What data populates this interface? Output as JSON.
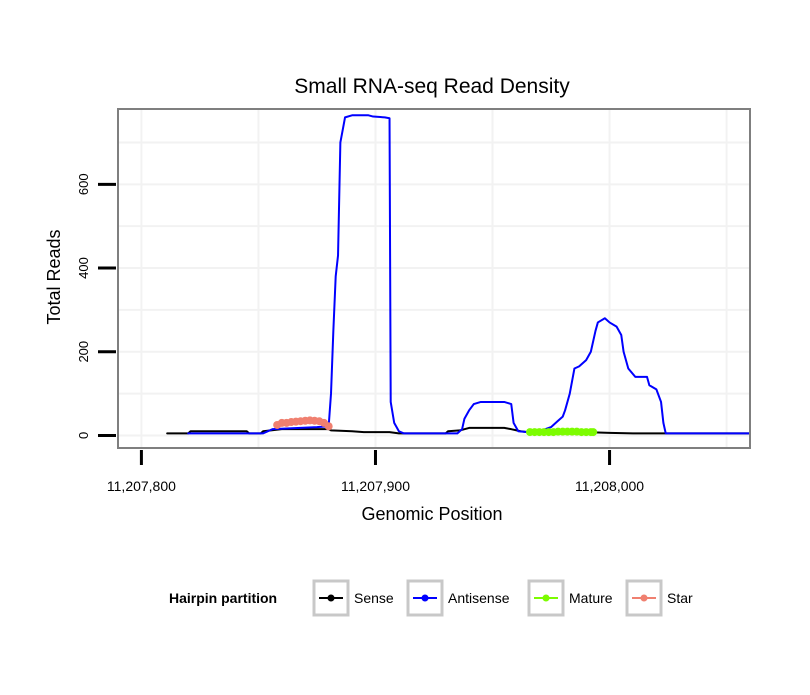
{
  "chart_data": {
    "type": "line",
    "title": "Small RNA-seq Read Density",
    "xlabel": "Genomic Position",
    "ylabel": "Total Reads",
    "xlim": [
      11207790,
      11208060
    ],
    "ylim": [
      -30,
      780
    ],
    "x_ticks": [
      11207800,
      11207900,
      11208000
    ],
    "x_tick_labels": [
      "11,207,800",
      "11,207,900",
      "11,208,000"
    ],
    "y_ticks": [
      0,
      200,
      400,
      600
    ],
    "y_tick_labels": [
      "0",
      "200",
      "400",
      "600"
    ],
    "grid": true,
    "legend": {
      "title": "Hairpin partition",
      "position": "bottom"
    },
    "colors": {
      "sense": "#000000",
      "antisense": "#0000ff",
      "mature": "#7cfc00",
      "star": "#f08070",
      "panel_border": "#7f7f7f",
      "grid": "#f2f2f2",
      "legend_key_border": "#c8c8c8"
    },
    "series": [
      {
        "name": "Sense",
        "color": "#000000",
        "marker": false,
        "points": [
          [
            11207811,
            5
          ],
          [
            11207820,
            5
          ],
          [
            11207821,
            10
          ],
          [
            11207835,
            10
          ],
          [
            11207845,
            10
          ],
          [
            11207846,
            5
          ],
          [
            11207851,
            5
          ],
          [
            11207852,
            10
          ],
          [
            11207860,
            15
          ],
          [
            11207870,
            15
          ],
          [
            11207880,
            15
          ],
          [
            11207881,
            12
          ],
          [
            11207890,
            10
          ],
          [
            11207895,
            8
          ],
          [
            11207900,
            8
          ],
          [
            11207906,
            8
          ],
          [
            11207910,
            5
          ],
          [
            11207930,
            5
          ],
          [
            11207931,
            10
          ],
          [
            11207936,
            12
          ],
          [
            11207940,
            18
          ],
          [
            11207955,
            18
          ],
          [
            11207958,
            15
          ],
          [
            11207962,
            10
          ],
          [
            11207965,
            8
          ],
          [
            11207990,
            8
          ],
          [
            11208000,
            6
          ],
          [
            11208010,
            5
          ],
          [
            11208060,
            5
          ]
        ]
      },
      {
        "name": "Antisense",
        "color": "#0000ff",
        "marker": false,
        "points": [
          [
            11207820,
            5
          ],
          [
            11207852,
            5
          ],
          [
            11207856,
            15
          ],
          [
            11207875,
            20
          ],
          [
            11207880,
            22
          ],
          [
            11207881,
            100
          ],
          [
            11207882,
            250
          ],
          [
            11207883,
            380
          ],
          [
            11207884,
            430
          ],
          [
            11207885,
            700
          ],
          [
            11207887,
            760
          ],
          [
            11207890,
            765
          ],
          [
            11207897,
            765
          ],
          [
            11207899,
            762
          ],
          [
            11207904,
            760
          ],
          [
            11207906,
            758
          ],
          [
            11207906.5,
            80
          ],
          [
            11207908,
            30
          ],
          [
            11207910,
            10
          ],
          [
            11207912,
            5
          ],
          [
            11207935,
            5
          ],
          [
            11207937,
            15
          ],
          [
            11207938,
            40
          ],
          [
            11207940,
            60
          ],
          [
            11207942,
            75
          ],
          [
            11207945,
            80
          ],
          [
            11207955,
            80
          ],
          [
            11207958,
            75
          ],
          [
            11207959,
            30
          ],
          [
            11207961,
            10
          ],
          [
            11207965,
            8
          ],
          [
            11207970,
            10
          ],
          [
            11207975,
            20
          ],
          [
            11207978,
            35
          ],
          [
            11207980,
            45
          ],
          [
            11207981,
            60
          ],
          [
            11207983,
            100
          ],
          [
            11207985,
            160
          ],
          [
            11207987,
            165
          ],
          [
            11207990,
            180
          ],
          [
            11207992,
            200
          ],
          [
            11207994,
            250
          ],
          [
            11207995,
            270
          ],
          [
            11207998,
            280
          ],
          [
            11208000,
            270
          ],
          [
            11208003,
            260
          ],
          [
            11208005,
            240
          ],
          [
            11208006,
            200
          ],
          [
            11208008,
            160
          ],
          [
            11208011,
            140
          ],
          [
            11208016,
            140
          ],
          [
            11208017,
            120
          ],
          [
            11208020,
            110
          ],
          [
            11208022,
            80
          ],
          [
            11208023,
            30
          ],
          [
            11208024,
            5
          ],
          [
            11208060,
            5
          ]
        ]
      },
      {
        "name": "Mature",
        "color": "#7cfc00",
        "marker": true,
        "points": [
          [
            11207966,
            8
          ],
          [
            11207968,
            8
          ],
          [
            11207970,
            8
          ],
          [
            11207972,
            8
          ],
          [
            11207974,
            8
          ],
          [
            11207976,
            8
          ],
          [
            11207978,
            9
          ],
          [
            11207980,
            9
          ],
          [
            11207982,
            9
          ],
          [
            11207984,
            9
          ],
          [
            11207986,
            9
          ],
          [
            11207988,
            8
          ],
          [
            11207990,
            8
          ],
          [
            11207992,
            8
          ],
          [
            11207993,
            8
          ]
        ]
      },
      {
        "name": "Star",
        "color": "#f08070",
        "marker": true,
        "points": [
          [
            11207858,
            25
          ],
          [
            11207860,
            30
          ],
          [
            11207862,
            30
          ],
          [
            11207864,
            32
          ],
          [
            11207866,
            33
          ],
          [
            11207868,
            34
          ],
          [
            11207870,
            35
          ],
          [
            11207872,
            36
          ],
          [
            11207874,
            35
          ],
          [
            11207876,
            34
          ],
          [
            11207878,
            30
          ],
          [
            11207880,
            22
          ]
        ]
      }
    ]
  }
}
